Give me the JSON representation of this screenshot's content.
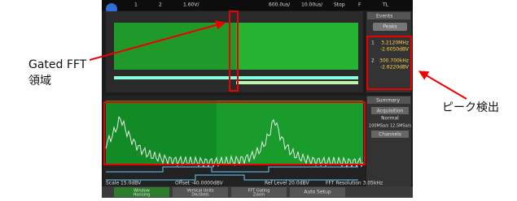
{
  "annotations": {
    "gated_fft": "Gated FFT",
    "gated_region": "領域",
    "peak_detect": "ピーク検出"
  },
  "top_bar": {
    "items": [
      "1",
      "2",
      "1.60V/",
      "600.0us/",
      "10.00us/",
      "Stop",
      "F",
      "TL"
    ]
  },
  "panels": {
    "events": {
      "title": "Events",
      "button": "Peaks",
      "peaks": [
        {
          "index": "1",
          "freq": "3.2120MHz",
          "level": "-2.6050dBV"
        },
        {
          "index": "2",
          "freq": "300.700kHz",
          "level": "-2.6220dBV"
        }
      ]
    },
    "summary": {
      "title": "Summary",
      "acquisition": "Acquisition",
      "mode": "Normal",
      "rate": "100MSa/s 12.5MSa/s",
      "channels": "Channels"
    }
  },
  "status": [
    "Scale 15.0dBV",
    "Offset -40.0000dBV",
    "Ref Level 20.0dBV",
    "FFT Resolution 3.05kHz"
  ],
  "softkeys": [
    {
      "label": "Window",
      "value": "Hanning"
    },
    {
      "label": "Vertical Units",
      "value": "Decibels"
    },
    {
      "label": "FFT Gating",
      "value": "Zoom"
    },
    {
      "label": "Auto Setup"
    }
  ]
}
